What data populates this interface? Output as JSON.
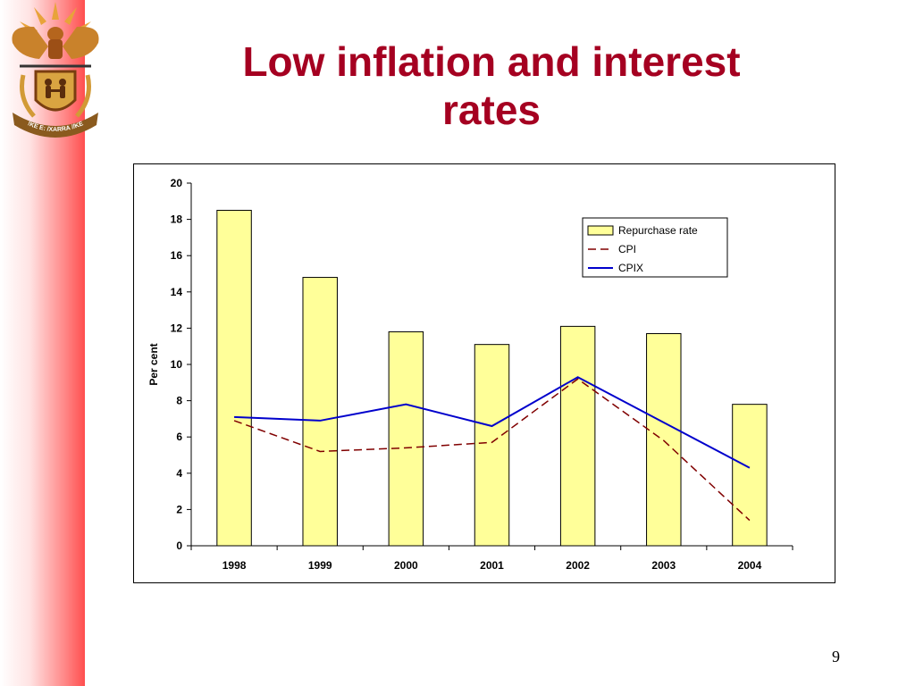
{
  "slide": {
    "title_lines": [
      "Low inflation and interest",
      "rates"
    ],
    "page_number": "9"
  },
  "colors": {
    "title": "#a50021",
    "bar_fill": "#ffff99",
    "cpi_line": "#800000",
    "cpix_line": "#0000cc",
    "stripe": "#ff4f4f"
  },
  "logo": {
    "name": "south-africa-coat-of-arms",
    "motto": "!KE E: /XARRA //KE"
  },
  "chart_data": {
    "type": "bar",
    "title": "",
    "xlabel": "",
    "ylabel": "Per cent",
    "ylim": [
      0,
      20
    ],
    "yticks": [
      0,
      2,
      4,
      6,
      8,
      10,
      12,
      14,
      16,
      18,
      20
    ],
    "categories": [
      "1998",
      "1999",
      "2000",
      "2001",
      "2002",
      "2003",
      "2004"
    ],
    "legend_position": "top-right",
    "grid": false,
    "series": [
      {
        "name": "Repurchase rate",
        "type": "bar",
        "values": [
          18.5,
          14.8,
          11.8,
          11.1,
          12.1,
          11.7,
          7.8
        ]
      },
      {
        "name": "CPI",
        "type": "line",
        "style": "dashed",
        "values": [
          6.9,
          5.2,
          5.4,
          5.7,
          9.2,
          5.8,
          1.4
        ]
      },
      {
        "name": "CPIX",
        "type": "line",
        "style": "solid",
        "values": [
          7.1,
          6.9,
          7.8,
          6.6,
          9.3,
          6.8,
          4.3
        ]
      }
    ]
  }
}
